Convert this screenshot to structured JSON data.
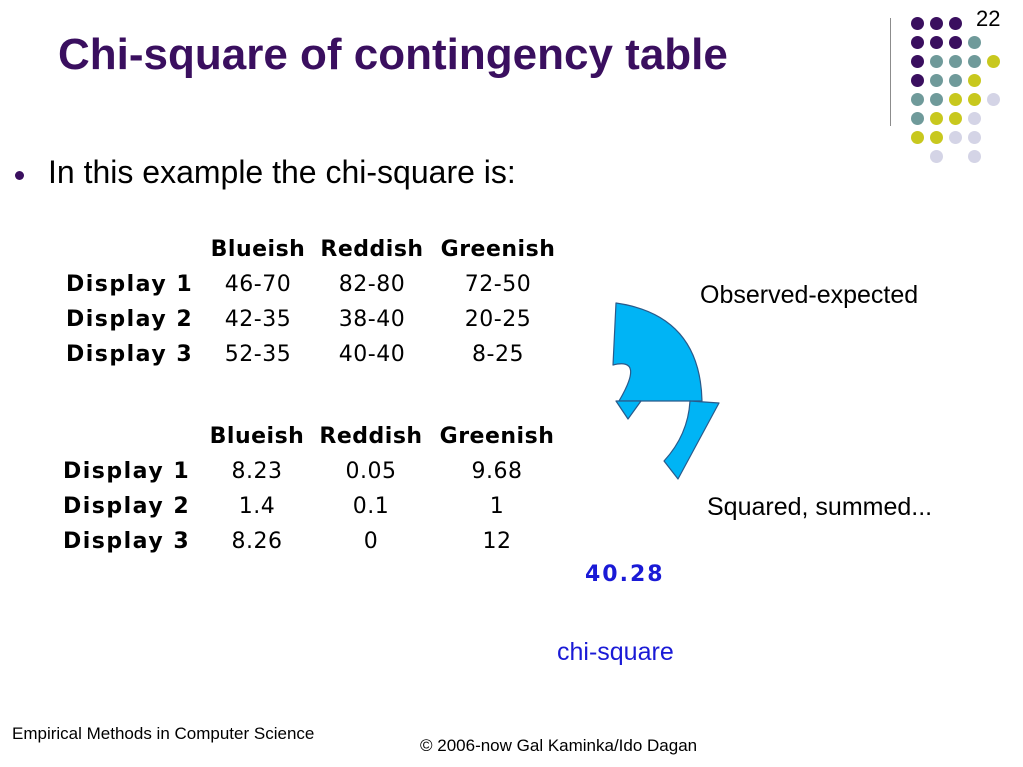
{
  "slide": {
    "number": "22",
    "title": "Chi-square of contingency table",
    "bullet": "In this example the chi-square is:"
  },
  "table_observed_expected": {
    "headers": [
      "Blueish",
      "Reddish",
      "Greenish"
    ],
    "rows": [
      {
        "label": "Display 1",
        "values": [
          "46-70",
          "82-80",
          "72-50"
        ]
      },
      {
        "label": "Display 2",
        "values": [
          "42-35",
          "38-40",
          "20-25"
        ]
      },
      {
        "label": "Display 3",
        "values": [
          "52-35",
          "40-40",
          "8-25"
        ]
      }
    ]
  },
  "table_squared": {
    "headers": [
      "Blueish",
      "Reddish",
      "Greenish"
    ],
    "rows": [
      {
        "label": "Display 1",
        "values": [
          "8.23",
          "0.05",
          "9.68"
        ]
      },
      {
        "label": "Display 2",
        "values": [
          "1.4",
          "0.1",
          "1"
        ]
      },
      {
        "label": "Display 3",
        "values": [
          "8.26",
          "0",
          "12"
        ]
      }
    ]
  },
  "annotations": {
    "observed_expected": "Observed-expected",
    "squared_summed": "Squared, summed...",
    "total": "40.28",
    "chi_square_label": "chi-square"
  },
  "footer": {
    "course": "Empirical Methods in Computer Science",
    "copyright": "© 2006-now  Gal Kaminka/Ido Dagan"
  },
  "colors": {
    "title": "#3a0f5f",
    "accent_blue": "#1a1ad6",
    "arrow_fill": "#00b4f5",
    "dot_purple": "#3a0f5f",
    "dot_teal": "#6f9a9a",
    "dot_yellow": "#c8c81e",
    "dot_lavender": "#d4d4e6"
  }
}
